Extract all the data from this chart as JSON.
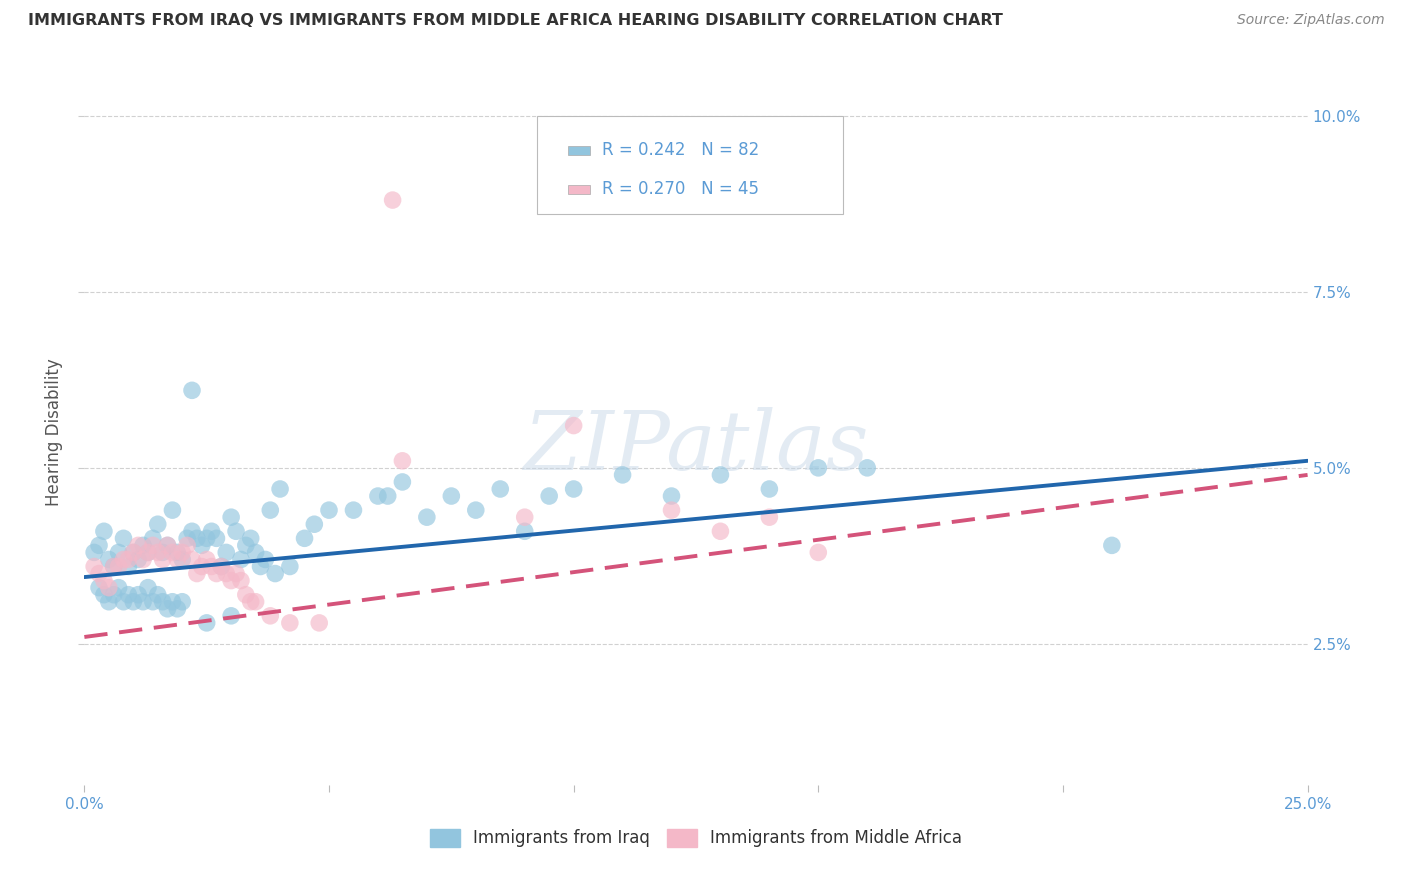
{
  "title": "IMMIGRANTS FROM IRAQ VS IMMIGRANTS FROM MIDDLE AFRICA HEARING DISABILITY CORRELATION CHART",
  "source": "Source: ZipAtlas.com",
  "ylabel": "Hearing Disability",
  "xlim": [
    0.0,
    0.25
  ],
  "ylim": [
    0.005,
    0.105
  ],
  "legend_r1": "R = 0.242",
  "legend_n1": "N = 82",
  "legend_r2": "R = 0.270",
  "legend_n2": "N = 45",
  "legend_label1": "Immigrants from Iraq",
  "legend_label2": "Immigrants from Middle Africa",
  "blue_color": "#92c5de",
  "pink_color": "#f4b8c8",
  "blue_line_color": "#2166ac",
  "pink_line_color": "#d4537a",
  "blue_scatter_x": [
    0.002,
    0.003,
    0.004,
    0.005,
    0.006,
    0.007,
    0.008,
    0.009,
    0.01,
    0.011,
    0.012,
    0.013,
    0.014,
    0.015,
    0.016,
    0.017,
    0.018,
    0.019,
    0.02,
    0.021,
    0.022,
    0.023,
    0.024,
    0.025,
    0.026,
    0.027,
    0.028,
    0.029,
    0.03,
    0.031,
    0.032,
    0.033,
    0.034,
    0.035,
    0.036,
    0.037,
    0.038,
    0.039,
    0.04,
    0.042,
    0.045,
    0.047,
    0.05,
    0.055,
    0.06,
    0.062,
    0.065,
    0.07,
    0.075,
    0.08,
    0.085,
    0.09,
    0.095,
    0.1,
    0.11,
    0.12,
    0.13,
    0.14,
    0.15,
    0.16,
    0.003,
    0.004,
    0.005,
    0.006,
    0.007,
    0.008,
    0.009,
    0.01,
    0.011,
    0.012,
    0.013,
    0.014,
    0.015,
    0.016,
    0.017,
    0.018,
    0.019,
    0.02,
    0.025,
    0.03,
    0.022,
    0.21
  ],
  "blue_scatter_y": [
    0.038,
    0.039,
    0.041,
    0.037,
    0.036,
    0.038,
    0.04,
    0.036,
    0.038,
    0.037,
    0.039,
    0.038,
    0.04,
    0.042,
    0.038,
    0.039,
    0.044,
    0.038,
    0.037,
    0.04,
    0.041,
    0.04,
    0.039,
    0.04,
    0.041,
    0.04,
    0.036,
    0.038,
    0.043,
    0.041,
    0.037,
    0.039,
    0.04,
    0.038,
    0.036,
    0.037,
    0.044,
    0.035,
    0.047,
    0.036,
    0.04,
    0.042,
    0.044,
    0.044,
    0.046,
    0.046,
    0.048,
    0.043,
    0.046,
    0.044,
    0.047,
    0.041,
    0.046,
    0.047,
    0.049,
    0.046,
    0.049,
    0.047,
    0.05,
    0.05,
    0.033,
    0.032,
    0.031,
    0.032,
    0.033,
    0.031,
    0.032,
    0.031,
    0.032,
    0.031,
    0.033,
    0.031,
    0.032,
    0.031,
    0.03,
    0.031,
    0.03,
    0.031,
    0.028,
    0.029,
    0.061,
    0.039
  ],
  "pink_scatter_x": [
    0.002,
    0.003,
    0.004,
    0.005,
    0.006,
    0.007,
    0.008,
    0.009,
    0.01,
    0.011,
    0.012,
    0.013,
    0.014,
    0.015,
    0.016,
    0.017,
    0.018,
    0.019,
    0.02,
    0.021,
    0.022,
    0.023,
    0.024,
    0.025,
    0.026,
    0.027,
    0.028,
    0.029,
    0.03,
    0.031,
    0.032,
    0.033,
    0.034,
    0.035,
    0.038,
    0.042,
    0.048,
    0.065,
    0.09,
    0.1,
    0.12,
    0.13,
    0.14,
    0.15,
    0.063
  ],
  "pink_scatter_y": [
    0.036,
    0.035,
    0.034,
    0.033,
    0.036,
    0.036,
    0.037,
    0.037,
    0.038,
    0.039,
    0.037,
    0.038,
    0.039,
    0.038,
    0.037,
    0.039,
    0.038,
    0.037,
    0.038,
    0.039,
    0.037,
    0.035,
    0.036,
    0.037,
    0.036,
    0.035,
    0.036,
    0.035,
    0.034,
    0.035,
    0.034,
    0.032,
    0.031,
    0.031,
    0.029,
    0.028,
    0.028,
    0.051,
    0.043,
    0.056,
    0.044,
    0.041,
    0.043,
    0.038,
    0.088
  ],
  "watermark_text": "ZIPatlas",
  "background_color": "#ffffff",
  "grid_color": "#cccccc",
  "title_color": "#333333",
  "axis_label_color": "#5b9bd5",
  "ylabel_color": "#555555",
  "ytick_positions": [
    0.025,
    0.05,
    0.075,
    0.1
  ],
  "ytick_labels": [
    "2.5%",
    "5.0%",
    "7.5%",
    "10.0%"
  ],
  "xtick_positions": [
    0.0,
    0.05,
    0.1,
    0.15,
    0.2,
    0.25
  ],
  "xtick_labels": [
    "0.0%",
    "",
    "",
    "",
    "",
    "25.0%"
  ],
  "blue_line_intercept": 0.0345,
  "blue_line_slope": 0.066,
  "pink_line_intercept": 0.026,
  "pink_line_slope": 0.092
}
